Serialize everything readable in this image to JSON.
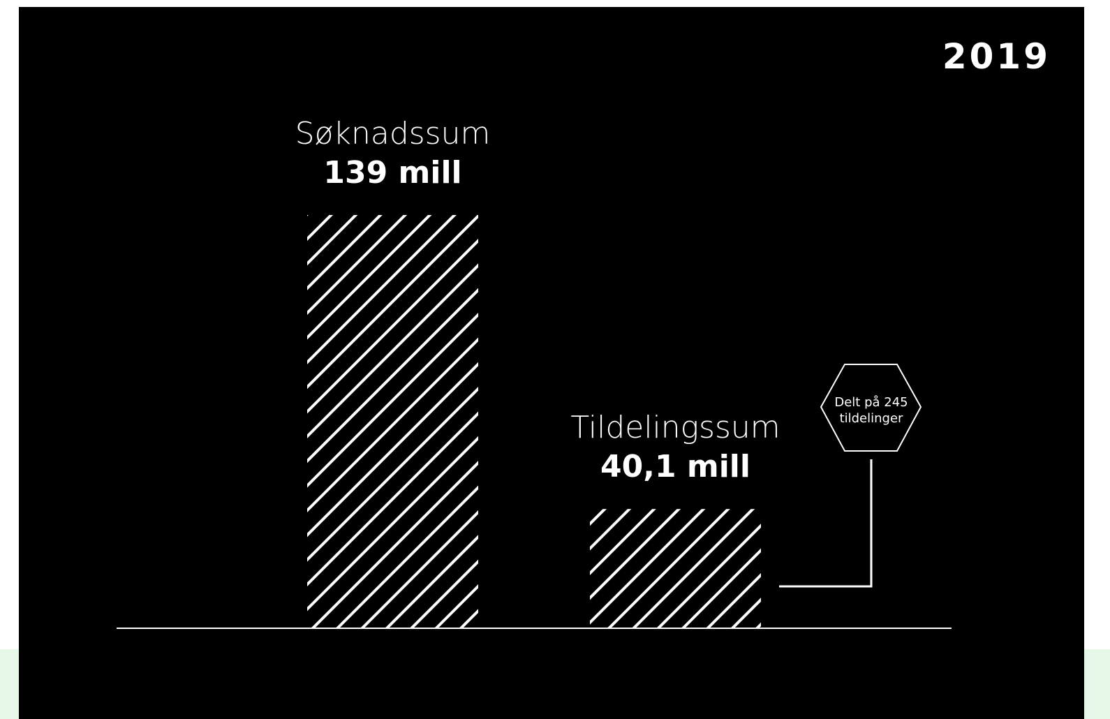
{
  "year": "2019",
  "colors": {
    "background": "#000000",
    "foreground": "#ffffff",
    "band": "#e7f8e9"
  },
  "chart_data": {
    "type": "bar",
    "categories": [
      "Søknadssum",
      "Tildelingssum"
    ],
    "values": [
      139,
      40.1
    ],
    "value_labels": [
      "139 mill",
      "40,1 mill"
    ],
    "title": "",
    "xlabel": "",
    "ylabel": "",
    "ylim": [
      0,
      139
    ],
    "grid": false,
    "bar_fill": "diagonal-hatch",
    "annotation": {
      "target_category": "Tildelingssum",
      "lines": [
        "Delt på 245",
        "tildelinger"
      ],
      "shape": "hexagon"
    }
  }
}
